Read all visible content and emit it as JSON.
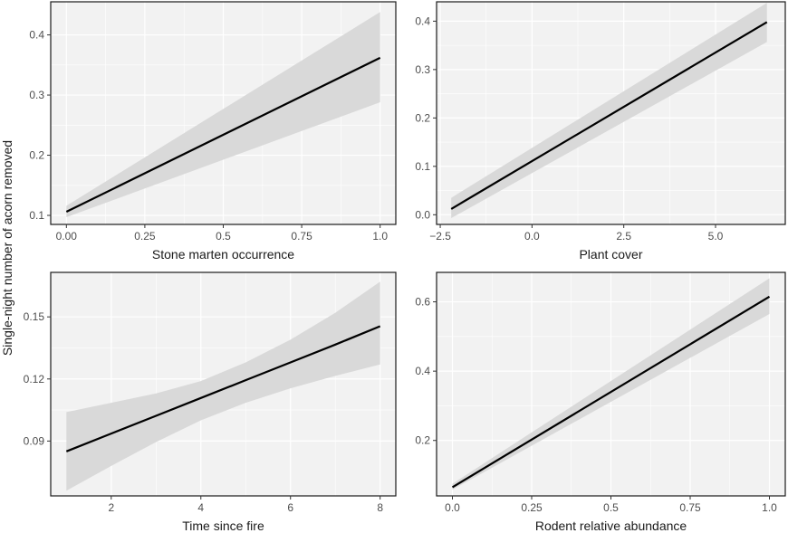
{
  "y_axis_title": "Single-night number of acorn removed",
  "chart_data": [
    {
      "type": "line",
      "xlabel": "Stone marten occurrence",
      "ylabel": "",
      "xlim": [
        -0.05,
        1.05
      ],
      "ylim": [
        0.085,
        0.455
      ],
      "x_ticks": [
        0,
        0.25,
        0.5,
        0.75,
        1
      ],
      "x_tick_labels": [
        "0.00",
        "0.25",
        "0.5",
        "0.75",
        "1.0"
      ],
      "y_ticks": [
        0.1,
        0.2,
        0.3,
        0.4
      ],
      "y_tick_labels": [
        "0.1",
        "0.2",
        "0.3",
        "0.4"
      ],
      "grid": true,
      "series": [
        {
          "x": [
            0,
            1
          ],
          "y": [
            0.106,
            0.362
          ],
          "lower": [
            0.097,
            0.288
          ],
          "upper": [
            0.116,
            0.438
          ]
        }
      ]
    },
    {
      "type": "line",
      "xlabel": "Plant cover",
      "ylabel": "",
      "xlim": [
        -2.6,
        6.9
      ],
      "ylim": [
        -0.02,
        0.44
      ],
      "x_ticks": [
        -2.5,
        0,
        2.5,
        5
      ],
      "x_tick_labels": [
        "−2.5",
        "0.0",
        "2.5",
        "5.0"
      ],
      "y_ticks": [
        0,
        0.1,
        0.2,
        0.3,
        0.4
      ],
      "y_tick_labels": [
        "0.0",
        "0.1",
        "0.2",
        "0.3",
        "0.4"
      ],
      "grid": true,
      "series": [
        {
          "x": [
            -2.2,
            6.4
          ],
          "y": [
            0.012,
            0.398
          ],
          "lower": [
            -0.007,
            0.357
          ],
          "upper": [
            0.035,
            0.438
          ]
        }
      ]
    },
    {
      "type": "line",
      "xlabel": "Time since fire",
      "ylabel": "",
      "xlim": [
        0.65,
        8.35
      ],
      "ylim": [
        0.0635,
        0.1715
      ],
      "x_ticks": [
        2,
        4,
        6,
        8
      ],
      "x_tick_labels": [
        "2",
        "4",
        "6",
        "8"
      ],
      "y_ticks": [
        0.09,
        0.12,
        0.15
      ],
      "y_tick_labels": [
        "0.09",
        "0.12",
        "0.15"
      ],
      "grid": true,
      "series": [
        {
          "x": [
            1,
            2,
            3,
            4,
            5,
            6,
            7,
            8
          ],
          "y": [
            0.085,
            0.0936,
            0.1022,
            0.1108,
            0.1194,
            0.128,
            0.1366,
            0.1455
          ],
          "lower": [
            0.066,
            0.078,
            0.0895,
            0.1,
            0.1085,
            0.1155,
            0.1215,
            0.127
          ],
          "upper": [
            0.104,
            0.1085,
            0.113,
            0.119,
            0.128,
            0.139,
            0.152,
            0.167
          ]
        }
      ]
    },
    {
      "type": "line",
      "xlabel": "Rodent relative abundance",
      "ylabel": "",
      "xlim": [
        -0.05,
        1.05
      ],
      "ylim": [
        0.04,
        0.685
      ],
      "x_ticks": [
        0,
        0.25,
        0.5,
        0.75,
        1
      ],
      "x_tick_labels": [
        "0.0",
        "0.25",
        "0.5",
        "0.75",
        "1.0"
      ],
      "y_ticks": [
        0.2,
        0.4,
        0.6
      ],
      "y_tick_labels": [
        "0.2",
        "0.4",
        "0.6"
      ],
      "grid": true,
      "series": [
        {
          "x": [
            0,
            1
          ],
          "y": [
            0.065,
            0.615
          ],
          "lower": [
            0.058,
            0.565
          ],
          "upper": [
            0.075,
            0.668
          ]
        }
      ]
    }
  ]
}
